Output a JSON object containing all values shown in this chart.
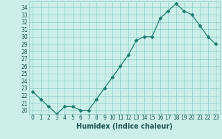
{
  "x": [
    0,
    1,
    2,
    3,
    4,
    5,
    6,
    7,
    8,
    9,
    10,
    11,
    12,
    13,
    14,
    15,
    16,
    17,
    18,
    19,
    20,
    21,
    22,
    23
  ],
  "y": [
    22.5,
    21.5,
    20.5,
    19.5,
    20.5,
    20.5,
    20.0,
    20.0,
    21.5,
    23.0,
    24.5,
    26.0,
    27.5,
    29.5,
    30.0,
    30.0,
    32.5,
    33.5,
    34.5,
    33.5,
    33.0,
    31.5,
    30.0,
    29.0
  ],
  "line_color": "#1a7a6e",
  "marker": "D",
  "marker_size": 2.5,
  "bg_color": "#cceee8",
  "grid_color": "#88cccc",
  "xlabel": "Humidex (Indice chaleur)",
  "xlim": [
    -0.5,
    23.5
  ],
  "ylim": [
    19.5,
    34.8
  ],
  "yticks": [
    20,
    21,
    22,
    23,
    24,
    25,
    26,
    27,
    28,
    29,
    30,
    31,
    32,
    33,
    34
  ],
  "xticks": [
    0,
    1,
    2,
    3,
    4,
    5,
    6,
    7,
    8,
    9,
    10,
    11,
    12,
    13,
    14,
    15,
    16,
    17,
    18,
    19,
    20,
    21,
    22,
    23
  ],
  "xtick_labels": [
    "0",
    "1",
    "2",
    "3",
    "4",
    "5",
    "6",
    "7",
    "8",
    "9",
    "10",
    "11",
    "12",
    "13",
    "14",
    "15",
    "16",
    "17",
    "18",
    "19",
    "20",
    "21",
    "22",
    "23"
  ],
  "ytick_labels": [
    "20",
    "21",
    "22",
    "23",
    "24",
    "25",
    "26",
    "27",
    "28",
    "29",
    "30",
    "31",
    "32",
    "33",
    "34"
  ],
  "tick_fontsize": 5.5,
  "xlabel_fontsize": 7,
  "label_color": "#1a5555"
}
